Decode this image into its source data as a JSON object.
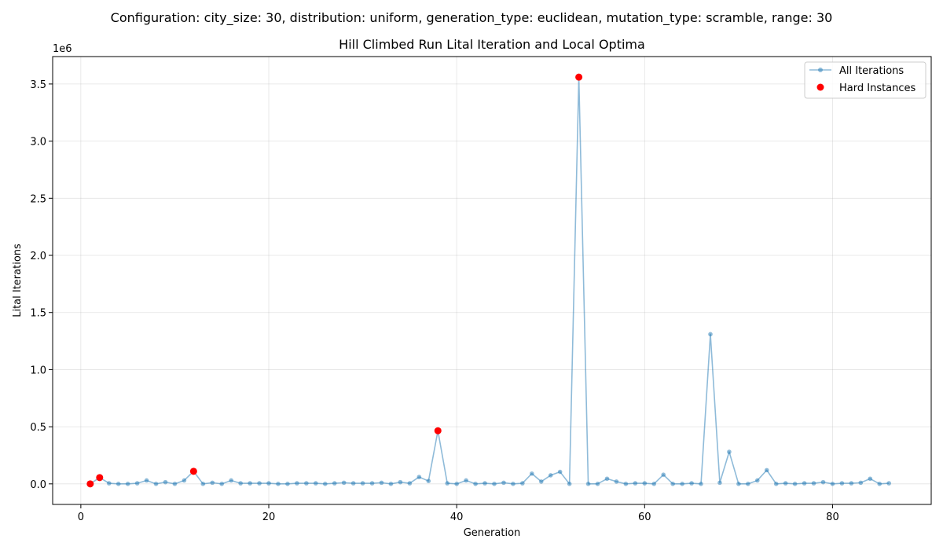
{
  "figure": {
    "suptitle": "Configuration: city_size: 30, distribution: uniform, generation_type: euclidean, mutation_type: scramble, range: 30"
  },
  "chart_data": {
    "type": "line",
    "title": "Hill Climbed Run Lital Iteration and Local Optima",
    "xlabel": "Generation",
    "ylabel": "Lital Iterations",
    "y_offset_label": "1e6",
    "xlim": [
      -3,
      90.5
    ],
    "ylim": [
      -180000,
      3740000
    ],
    "x_ticks": [
      0,
      20,
      40,
      60,
      80
    ],
    "x_tick_labels": [
      "0",
      "20",
      "40",
      "60",
      "80"
    ],
    "y_ticks": [
      0,
      500000,
      1000000,
      1500000,
      2000000,
      2500000,
      3000000,
      3500000
    ],
    "y_tick_labels": [
      "0.0",
      "0.5",
      "1.0",
      "1.5",
      "2.0",
      "2.5",
      "3.0",
      "3.5"
    ],
    "grid": true,
    "legend_position": "top-right",
    "series": [
      {
        "name": "All Iterations",
        "style": "line-marker",
        "color": "#1f77b4",
        "x": [
          1,
          2,
          3,
          4,
          5,
          6,
          7,
          8,
          9,
          10,
          11,
          12,
          13,
          14,
          15,
          16,
          17,
          18,
          19,
          20,
          21,
          22,
          23,
          24,
          25,
          26,
          27,
          28,
          29,
          30,
          31,
          32,
          33,
          34,
          35,
          36,
          37,
          38,
          39,
          40,
          41,
          42,
          43,
          44,
          45,
          46,
          47,
          48,
          49,
          50,
          51,
          52,
          53,
          54,
          55,
          56,
          57,
          58,
          59,
          60,
          61,
          62,
          63,
          64,
          65,
          66,
          67,
          68,
          69,
          70,
          71,
          72,
          73,
          74,
          75,
          76,
          77,
          78,
          79,
          80,
          81,
          82,
          83,
          84,
          85,
          86
        ],
        "y": [
          0,
          55000,
          5000,
          0,
          0,
          5000,
          30000,
          0,
          15000,
          0,
          30000,
          110000,
          0,
          10000,
          0,
          30000,
          5000,
          5000,
          5000,
          5000,
          0,
          0,
          5000,
          5000,
          5000,
          0,
          5000,
          10000,
          5000,
          5000,
          5000,
          10000,
          0,
          15000,
          5000,
          60000,
          25000,
          465000,
          5000,
          0,
          30000,
          0,
          5000,
          0,
          10000,
          0,
          5000,
          90000,
          20000,
          75000,
          105000,
          0,
          3560000,
          0,
          0,
          45000,
          20000,
          0,
          5000,
          5000,
          0,
          80000,
          0,
          0,
          5000,
          0,
          1310000,
          10000,
          280000,
          0,
          0,
          30000,
          120000,
          0,
          5000,
          0,
          5000,
          5000,
          15000,
          0,
          5000,
          5000,
          10000,
          45000,
          0,
          5000
        ]
      },
      {
        "name": "Hard Instances",
        "style": "scatter",
        "color": "#ff0000",
        "x": [
          1,
          2,
          12,
          38,
          53
        ],
        "y": [
          0,
          55000,
          110000,
          465000,
          3560000
        ]
      }
    ]
  }
}
